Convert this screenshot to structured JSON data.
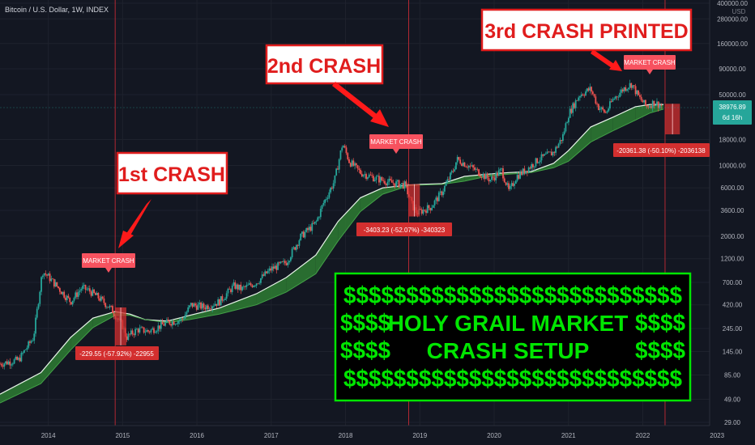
{
  "header": {
    "title": "Bitcoin / U.S. Dollar, 1W, INDEX"
  },
  "y_axis": {
    "currency": "USD",
    "ticks": [
      "400000.00",
      "280000.00",
      "160000.00",
      "90000.00",
      "50000.00",
      "18000.00",
      "10000.00",
      "6000.00",
      "3600.00",
      "2000.00",
      "1200.00",
      "700.00",
      "420.00",
      "245.00",
      "145.00",
      "85.00",
      "49.00",
      "29.00"
    ]
  },
  "x_axis": {
    "ticks": [
      "2014",
      "2015",
      "2016",
      "2017",
      "2018",
      "2019",
      "2020",
      "2021",
      "2022",
      "2023"
    ]
  },
  "price_tag": {
    "price": "38976.89",
    "countdown": "6d 16h"
  },
  "annotations": {
    "crash1": "1st CRASH",
    "crash2": "2nd CRASH",
    "crash3": "3rd CRASH PRINTED",
    "market_crash": "MARKET CRASH",
    "measure1": "-229.55 (-57.92%) -22955",
    "measure2": "-3403.23 (-52.07%) -340323",
    "measure3": "-20361.38 (-50.10%) -2036138",
    "setup_dollar_row": "$$$$$$$$$$$$$$$$$$$$$$$$$$$",
    "setup_side": "$$$$",
    "setup_line1": "HOLY GRAIL MARKET",
    "setup_line2": "CRASH SETUP"
  },
  "colors": {
    "background": "#131722",
    "up_candle": "#26a69a",
    "down_candle": "#ef5350",
    "annotation_red": "#f23645",
    "setup_green": "#00e600",
    "band_green": "#2e7d32",
    "band_red": "#8b3a44",
    "price_tag": "#26a69a"
  },
  "chart_data": {
    "type": "candlestick",
    "symbol": "Bitcoin / U.S. Dollar",
    "interval": "1W",
    "scale": "log",
    "ylim": [
      29,
      400000
    ],
    "xlim": [
      2013.35,
      2022.9
    ],
    "last_price": 38976.89,
    "crash_markers": [
      {
        "label": "MARKET CRASH",
        "date": 2014.9
      },
      {
        "label": "MARKET CRASH",
        "date": 2018.85
      },
      {
        "label": "MARKET CRASH",
        "date": 2022.3
      }
    ],
    "measurements": [
      {
        "text": "-229.55 (-57.92%) -22955",
        "from_date": 2014.9,
        "to_date": 2015.05,
        "from_price": 396,
        "to_price": 167
      },
      {
        "text": "-3403.23 (-52.07%) -340323",
        "from_date": 2018.85,
        "to_date": 2019.0,
        "from_price": 6535,
        "to_price": 3132
      },
      {
        "text": "-20361.38 (-50.10%) -2036138",
        "from_date": 2022.3,
        "to_date": 2022.5,
        "from_price": 40640,
        "to_price": 20280
      }
    ],
    "price_path": [
      [
        2013.35,
        110
      ],
      [
        2013.6,
        120
      ],
      [
        2013.8,
        200
      ],
      [
        2013.92,
        900
      ],
      [
        2014.0,
        800
      ],
      [
        2014.15,
        600
      ],
      [
        2014.3,
        450
      ],
      [
        2014.45,
        620
      ],
      [
        2014.55,
        580
      ],
      [
        2014.7,
        480
      ],
      [
        2014.85,
        380
      ],
      [
        2015.0,
        260
      ],
      [
        2015.05,
        200
      ],
      [
        2015.2,
        240
      ],
      [
        2015.35,
        230
      ],
      [
        2015.6,
        280
      ],
      [
        2015.8,
        300
      ],
      [
        2015.92,
        420
      ],
      [
        2016.1,
        400
      ],
      [
        2016.3,
        450
      ],
      [
        2016.5,
        650
      ],
      [
        2016.6,
        600
      ],
      [
        2016.8,
        700
      ],
      [
        2017.0,
        950
      ],
      [
        2017.2,
        1100
      ],
      [
        2017.4,
        2000
      ],
      [
        2017.6,
        2700
      ],
      [
        2017.7,
        4200
      ],
      [
        2017.85,
        7000
      ],
      [
        2017.96,
        16500
      ],
      [
        2018.05,
        11000
      ],
      [
        2018.2,
        8500
      ],
      [
        2018.4,
        7500
      ],
      [
        2018.6,
        6800
      ],
      [
        2018.8,
        6400
      ],
      [
        2018.9,
        4000
      ],
      [
        2018.96,
        3400
      ],
      [
        2019.15,
        3900
      ],
      [
        2019.3,
        5500
      ],
      [
        2019.45,
        9000
      ],
      [
        2019.5,
        11500
      ],
      [
        2019.65,
        10000
      ],
      [
        2019.8,
        8500
      ],
      [
        2019.95,
        7200
      ],
      [
        2020.1,
        9000
      ],
      [
        2020.2,
        5500
      ],
      [
        2020.3,
        7800
      ],
      [
        2020.45,
        9300
      ],
      [
        2020.6,
        11500
      ],
      [
        2020.8,
        13500
      ],
      [
        2020.92,
        19000
      ],
      [
        2021.0,
        32000
      ],
      [
        2021.15,
        50000
      ],
      [
        2021.3,
        57000
      ],
      [
        2021.4,
        38000
      ],
      [
        2021.5,
        33000
      ],
      [
        2021.6,
        45000
      ],
      [
        2021.75,
        58000
      ],
      [
        2021.85,
        64000
      ],
      [
        2021.95,
        47000
      ],
      [
        2022.05,
        38000
      ],
      [
        2022.15,
        42000
      ],
      [
        2022.25,
        39000
      ]
    ],
    "moving_average_band": [
      [
        2013.35,
        45,
        55
      ],
      [
        2013.9,
        70,
        90
      ],
      [
        2014.3,
        150,
        200
      ],
      [
        2014.6,
        250,
        310
      ],
      [
        2014.9,
        330,
        360
      ],
      [
        2015.1,
        330,
        340
      ],
      [
        2015.3,
        300,
        300
      ],
      [
        2015.6,
        280,
        290
      ],
      [
        2015.9,
        300,
        330
      ],
      [
        2016.3,
        340,
        390
      ],
      [
        2016.8,
        420,
        540
      ],
      [
        2017.2,
        560,
        780
      ],
      [
        2017.6,
        850,
        1300
      ],
      [
        2017.9,
        1800,
        2800
      ],
      [
        2018.2,
        3500,
        4800
      ],
      [
        2018.5,
        5200,
        6000
      ],
      [
        2018.85,
        6300,
        6400
      ],
      [
        2019.0,
        6500,
        6400
      ],
      [
        2019.3,
        6600,
        6500
      ],
      [
        2019.6,
        7000,
        7800
      ],
      [
        2019.9,
        7800,
        8200
      ],
      [
        2020.2,
        8200,
        8500
      ],
      [
        2020.5,
        8500,
        8700
      ],
      [
        2020.8,
        9500,
        10500
      ],
      [
        2021.0,
        11000,
        14000
      ],
      [
        2021.3,
        17000,
        24000
      ],
      [
        2021.6,
        22000,
        30000
      ],
      [
        2021.9,
        28000,
        38000
      ],
      [
        2022.1,
        33000,
        40000
      ],
      [
        2022.28,
        36000,
        40000
      ]
    ]
  }
}
